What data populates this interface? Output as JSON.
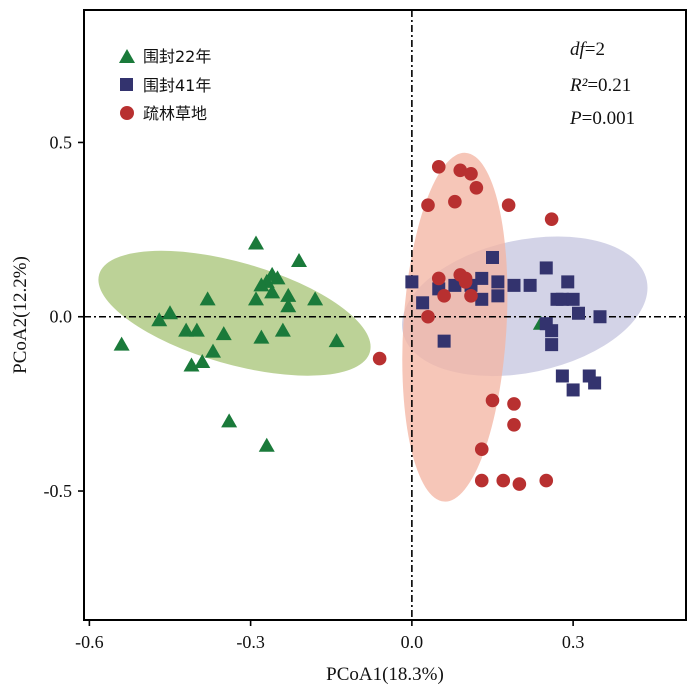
{
  "chart_data": {
    "type": "scatter",
    "xlabel": "PCoA1(18.3%)",
    "ylabel": "PCoA2(12.2%)",
    "xlim": [
      -0.61,
      0.51
    ],
    "ylim": [
      -0.87,
      0.88
    ],
    "x_ticks": [
      -0.6,
      -0.3,
      0.0,
      0.3
    ],
    "x_tick_labels": [
      "-0.6",
      "-0.3",
      "0.0",
      "0.3"
    ],
    "y_ticks": [
      -0.5,
      0.0,
      0.5
    ],
    "y_tick_labels": [
      "-0.5",
      "0.0",
      "0.5"
    ],
    "reference_lines": {
      "x": 0,
      "y": 0,
      "style": "dash-dot"
    },
    "legend_position": "top-left",
    "stats": {
      "df_label": "df",
      "df_value": "=2",
      "r2_label": "R²",
      "r2_value": "=0.21",
      "p_label": "P",
      "p_value": "=0.001"
    },
    "series": [
      {
        "name": "围封22年",
        "marker": "triangle",
        "color": "#1a7a3a",
        "ellipse": {
          "cx": -0.33,
          "cy": 0.01,
          "rx": 0.262,
          "ry": 0.146,
          "angle_deg": 16,
          "color": "#a9c57a"
        },
        "points": [
          [
            -0.29,
            0.21
          ],
          [
            -0.21,
            0.16
          ],
          [
            -0.27,
            0.1
          ],
          [
            -0.25,
            0.11
          ],
          [
            -0.26,
            0.12
          ],
          [
            -0.28,
            0.09
          ],
          [
            -0.26,
            0.07
          ],
          [
            -0.29,
            0.05
          ],
          [
            -0.23,
            0.06
          ],
          [
            -0.23,
            0.03
          ],
          [
            -0.18,
            0.05
          ],
          [
            -0.38,
            0.05
          ],
          [
            -0.45,
            0.01
          ],
          [
            -0.47,
            -0.01
          ],
          [
            -0.42,
            -0.04
          ],
          [
            -0.4,
            -0.04
          ],
          [
            -0.35,
            -0.05
          ],
          [
            -0.24,
            -0.04
          ],
          [
            -0.28,
            -0.06
          ],
          [
            -0.14,
            -0.07
          ],
          [
            -0.54,
            -0.08
          ],
          [
            -0.37,
            -0.1
          ],
          [
            -0.39,
            -0.13
          ],
          [
            -0.41,
            -0.14
          ],
          [
            -0.34,
            -0.3
          ],
          [
            -0.27,
            -0.37
          ],
          [
            0.24,
            -0.02
          ]
        ]
      },
      {
        "name": "围封41年",
        "marker": "square",
        "color": "#33336e",
        "ellipse": {
          "cx": 0.21,
          "cy": 0.03,
          "rx": 0.232,
          "ry": 0.19,
          "angle_deg": -12,
          "color": "#c7c7e0"
        },
        "points": [
          [
            0.0,
            0.1
          ],
          [
            0.15,
            0.17
          ],
          [
            0.25,
            0.14
          ],
          [
            0.29,
            0.1
          ],
          [
            0.22,
            0.09
          ],
          [
            0.13,
            0.11
          ],
          [
            0.11,
            0.09
          ],
          [
            0.08,
            0.09
          ],
          [
            0.05,
            0.08
          ],
          [
            0.16,
            0.1
          ],
          [
            0.19,
            0.09
          ],
          [
            0.27,
            0.05
          ],
          [
            0.28,
            0.05
          ],
          [
            0.3,
            0.05
          ],
          [
            0.02,
            0.04
          ],
          [
            0.13,
            0.05
          ],
          [
            0.16,
            0.06
          ],
          [
            0.31,
            0.01
          ],
          [
            0.35,
            0.0
          ],
          [
            0.26,
            -0.04
          ],
          [
            0.25,
            -0.02
          ],
          [
            0.06,
            -0.07
          ],
          [
            0.26,
            -0.08
          ],
          [
            0.28,
            -0.17
          ],
          [
            0.33,
            -0.17
          ],
          [
            0.34,
            -0.19
          ],
          [
            0.3,
            -0.21
          ]
        ]
      },
      {
        "name": "疏林草地",
        "marker": "circle",
        "color": "#b83030",
        "ellipse": {
          "cx": 0.08,
          "cy": -0.03,
          "rx": 0.325,
          "ry": 0.148,
          "angle_deg": -86.5,
          "color": "#f4b6a4"
        },
        "points": [
          [
            0.05,
            0.43
          ],
          [
            0.09,
            0.42
          ],
          [
            0.11,
            0.41
          ],
          [
            0.12,
            0.37
          ],
          [
            0.03,
            0.32
          ],
          [
            0.08,
            0.33
          ],
          [
            0.18,
            0.32
          ],
          [
            0.26,
            0.28
          ],
          [
            0.09,
            0.12
          ],
          [
            0.1,
            0.11
          ],
          [
            0.05,
            0.11
          ],
          [
            0.1,
            0.1
          ],
          [
            0.06,
            0.06
          ],
          [
            0.11,
            0.06
          ],
          [
            0.03,
            0.0
          ],
          [
            -0.06,
            -0.12
          ],
          [
            0.15,
            -0.24
          ],
          [
            0.19,
            -0.25
          ],
          [
            0.19,
            -0.31
          ],
          [
            0.13,
            -0.38
          ],
          [
            0.13,
            -0.47
          ],
          [
            0.17,
            -0.47
          ],
          [
            0.2,
            -0.48
          ],
          [
            0.25,
            -0.47
          ]
        ]
      }
    ]
  }
}
